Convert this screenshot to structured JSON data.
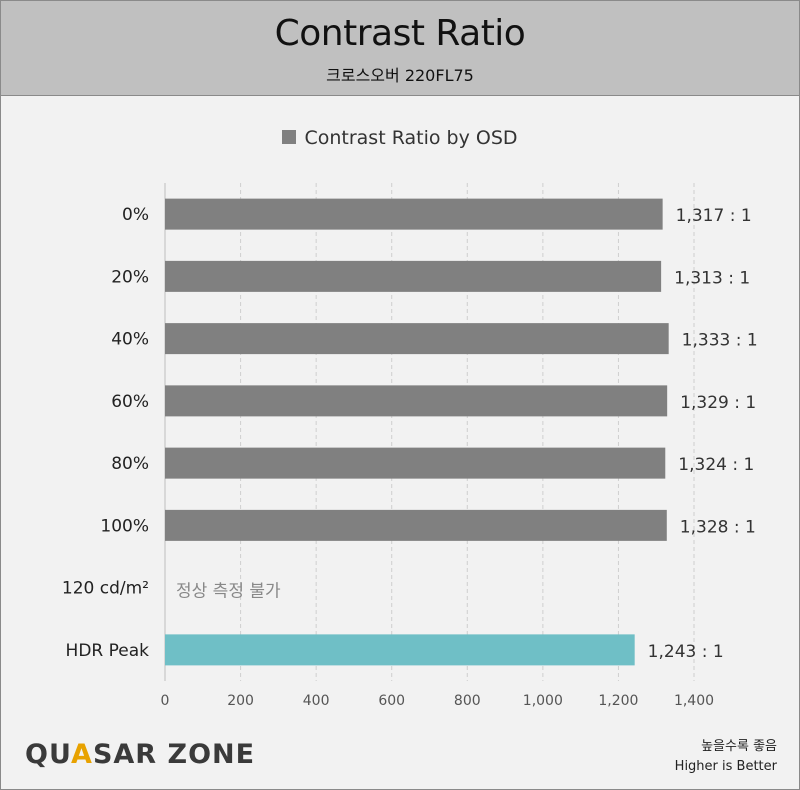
{
  "header": {
    "title": "Contrast Ratio",
    "subtitle": "크로스오버 220FL75"
  },
  "legend": {
    "label": "Contrast Ratio by OSD",
    "color": "#808080"
  },
  "footer": {
    "logo_left": "QU",
    "logo_accent": "A",
    "logo_right": "SAR ZONE",
    "note_ko": "높을수록 좋음",
    "note_en": "Higher is Better"
  },
  "chart_data": {
    "type": "bar",
    "orientation": "horizontal",
    "title": "Contrast Ratio",
    "subtitle": "크로스오버 220FL75",
    "categories": [
      "0%",
      "20%",
      "40%",
      "60%",
      "80%",
      "100%",
      "120 cd/m²",
      "HDR Peak"
    ],
    "series": [
      {
        "name": "Contrast Ratio by OSD",
        "values": [
          1317,
          1313,
          1333,
          1329,
          1324,
          1328,
          null,
          1243
        ],
        "labels": [
          "1,317 : 1",
          "1,313 : 1",
          "1,333 : 1",
          "1,329 : 1",
          "1,324 : 1",
          "1,328 : 1",
          "정상 측정 불가",
          "1,243 : 1"
        ],
        "colors": [
          "#808080",
          "#808080",
          "#808080",
          "#808080",
          "#808080",
          "#808080",
          "#808080",
          "#6fbfc6"
        ]
      }
    ],
    "xlim": [
      0,
      1400
    ],
    "xticks": [
      0,
      200,
      400,
      600,
      800,
      1000,
      1200,
      1400
    ],
    "xtick_labels": [
      "0",
      "200",
      "400",
      "600",
      "800",
      "1,000",
      "1,200",
      "1,400"
    ],
    "grid": "vertical dashed",
    "legend_position": "top-center",
    "label_color_na": "#888888",
    "grid_color": "#cfcfcf"
  }
}
